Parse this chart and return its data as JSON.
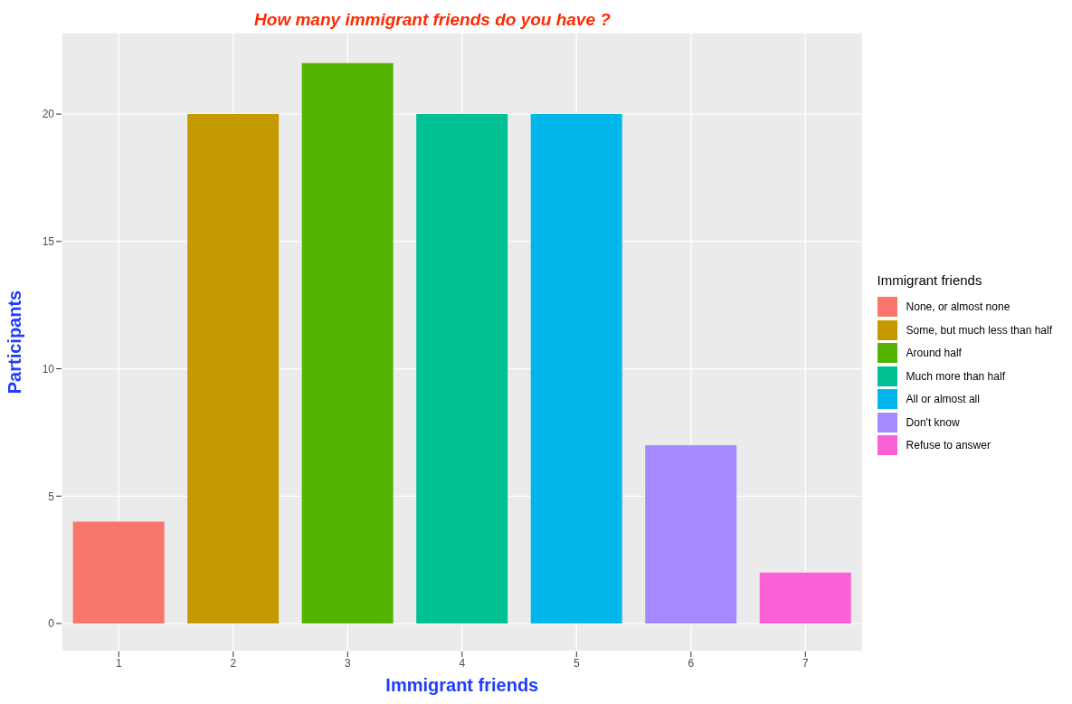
{
  "chart_data": {
    "type": "bar",
    "title": "How many immigrant friends do you have ?",
    "xlabel": "Immigrant friends",
    "ylabel": "Participants",
    "legend_title": "Immigrant friends",
    "categories": [
      "1",
      "2",
      "3",
      "4",
      "5",
      "6",
      "7"
    ],
    "series": [
      {
        "name": "None, or almost none",
        "color": "#f8766d",
        "values": [
          4,
          null,
          null,
          null,
          null,
          null,
          null
        ]
      },
      {
        "name": "Some, but much less than half",
        "color": "#c49a00",
        "values": [
          null,
          20,
          null,
          null,
          null,
          null,
          null
        ]
      },
      {
        "name": "Around half",
        "color": "#53b400",
        "values": [
          null,
          null,
          22,
          null,
          null,
          null,
          null
        ]
      },
      {
        "name": "Much more than half",
        "color": "#00c094",
        "values": [
          null,
          null,
          null,
          20,
          null,
          null,
          null
        ]
      },
      {
        "name": "All or almost all",
        "color": "#00b6eb",
        "values": [
          null,
          null,
          null,
          null,
          20,
          null,
          null
        ]
      },
      {
        "name": "Don't know",
        "color": "#a58aff",
        "values": [
          null,
          null,
          null,
          null,
          null,
          7,
          null
        ]
      },
      {
        "name": "Refuse to answer",
        "color": "#fb61d7",
        "values": [
          null,
          null,
          null,
          null,
          null,
          null,
          2
        ]
      }
    ],
    "stacked": true,
    "ylim": [
      -1.1,
      23.2
    ],
    "yticks": [
      0,
      5,
      10,
      15,
      20
    ],
    "grid": true,
    "legend": "right"
  }
}
